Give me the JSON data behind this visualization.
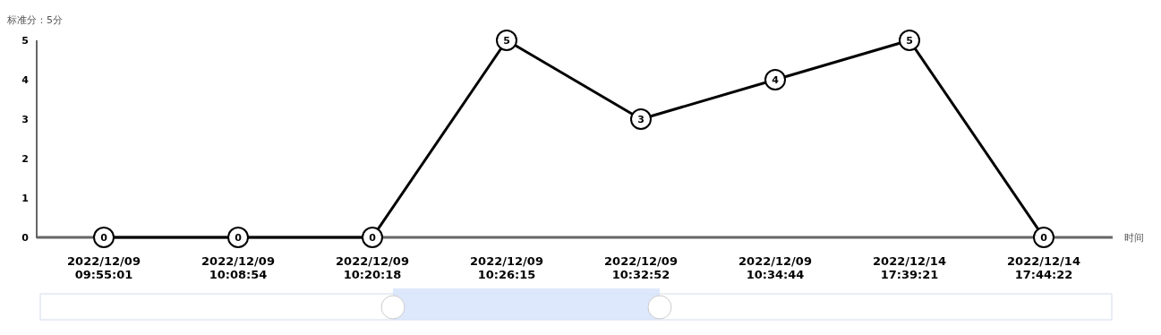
{
  "chart_data": {
    "type": "line",
    "ylabel": "标准分：5分",
    "xlabel": "时间",
    "categories": [
      "2022/12/09 09:55:01",
      "2022/12/09 10:08:54",
      "2022/12/09 10:20:18",
      "2022/12/09 10:26:15",
      "2022/12/09 10:32:52",
      "2022/12/09 10:34:44",
      "2022/12/14 17:39:21",
      "2022/12/14 17:44:22"
    ],
    "values": [
      0,
      0,
      0,
      5,
      3,
      4,
      5,
      0
    ],
    "color": "#000000",
    "marker": "circle",
    "line_style": "solid",
    "data_labels": true,
    "ylim": [
      0,
      5
    ],
    "yticks": [
      0,
      1,
      2,
      3,
      4,
      5
    ],
    "grid": false
  }
}
